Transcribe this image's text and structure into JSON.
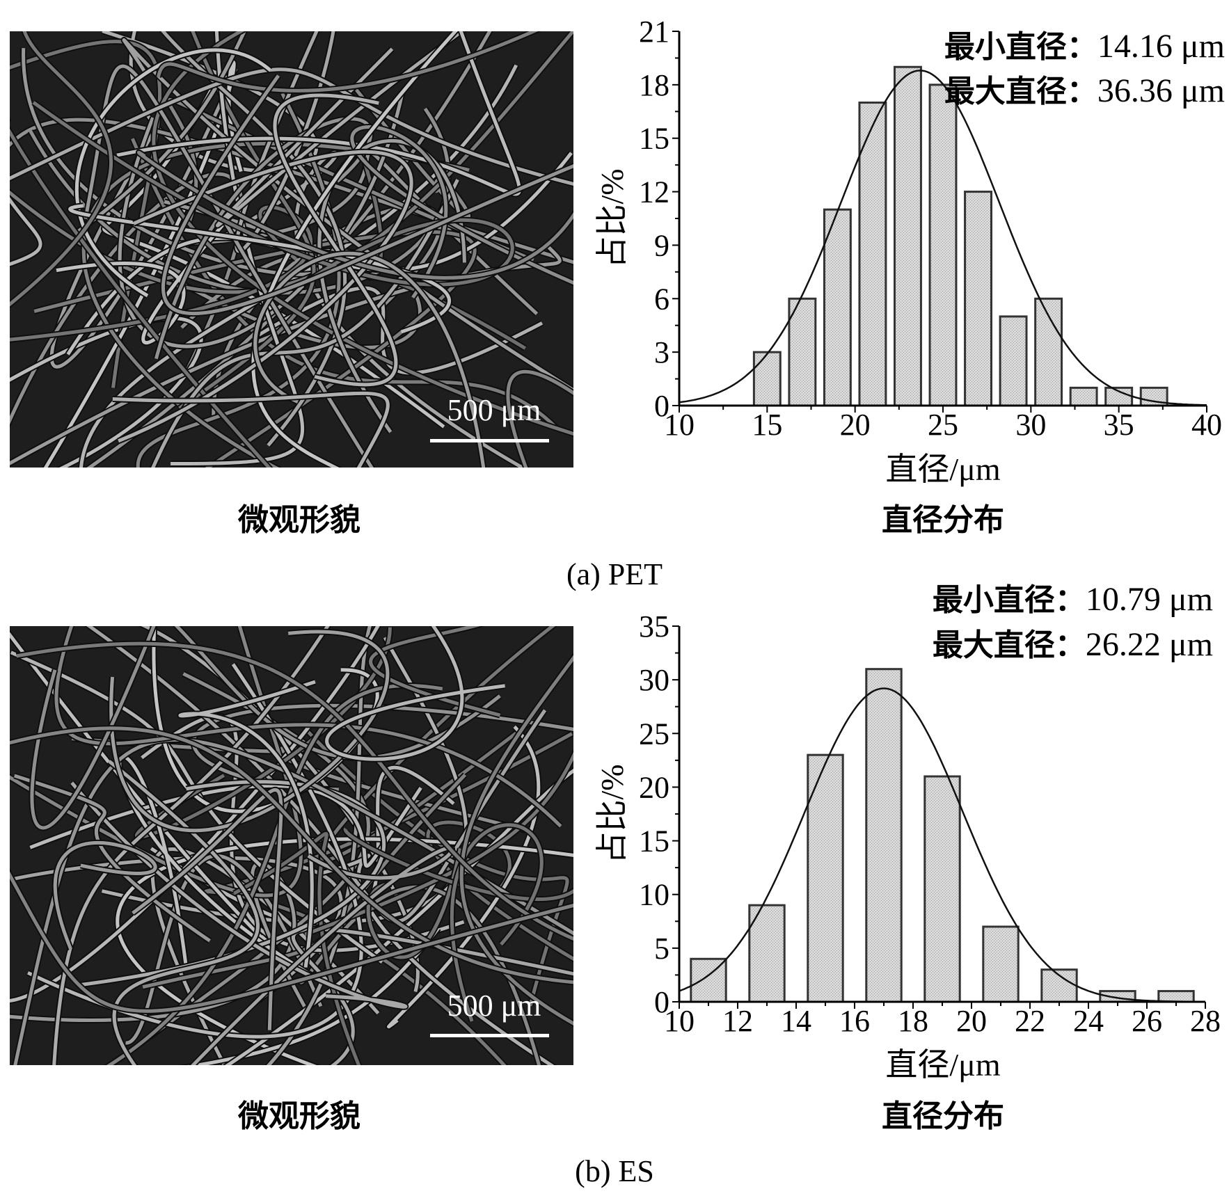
{
  "panels": [
    {
      "sub_caption": "(a)  PET",
      "sem": {
        "caption": "微观形貌",
        "scale_bar": "500 μm"
      },
      "chart_caption": "直径分布",
      "annotations": {
        "min_label": "最小直径：",
        "min_value": "14.16 μm",
        "max_label": "最大直径：",
        "max_value": "36.36 μm"
      }
    },
    {
      "sub_caption": "(b)  ES",
      "sem": {
        "caption": "微观形貌",
        "scale_bar": "500 μm"
      },
      "chart_caption": "直径分布",
      "annotations": {
        "min_label": "最小直径：",
        "min_value": "10.79 μm",
        "max_label": "最大直径：",
        "max_value": "26.22 μm"
      }
    }
  ],
  "colors": {
    "bar_fill": "#d4d4d4",
    "bar_stroke": "#333333",
    "sem_bg": "#1e1e1e",
    "fiber": "#9a9a9a"
  },
  "chart_data": [
    {
      "type": "bar",
      "title": "直径分布",
      "xlabel": "直径/μm",
      "ylabel": "占比/%",
      "xlim": [
        10,
        40
      ],
      "ylim": [
        0,
        21
      ],
      "xticks": [
        10,
        15,
        20,
        25,
        30,
        35,
        40
      ],
      "yticks": [
        0,
        3,
        6,
        9,
        12,
        15,
        18,
        21
      ],
      "bar_width": 1.5,
      "x": [
        15,
        17,
        19,
        21,
        23,
        25,
        27,
        29,
        31,
        33,
        35,
        37
      ],
      "values": [
        3,
        6,
        11,
        17,
        19,
        18,
        12,
        5,
        6,
        1,
        1,
        1
      ],
      "fit": {
        "type": "gaussian",
        "mean": 23.7,
        "sigma": 4.5,
        "peak": 18.8
      }
    },
    {
      "type": "bar",
      "title": "直径分布",
      "xlabel": "直径/μm",
      "ylabel": "占比/%",
      "xlim": [
        10,
        28
      ],
      "ylim": [
        0,
        35
      ],
      "xticks": [
        10,
        12,
        14,
        16,
        18,
        20,
        22,
        24,
        26,
        28
      ],
      "yticks": [
        0,
        5,
        10,
        15,
        20,
        25,
        30,
        35
      ],
      "bar_width": 1.2,
      "x": [
        11,
        13,
        15,
        17,
        19,
        21,
        23,
        25,
        27
      ],
      "values": [
        4,
        9,
        23,
        31,
        21,
        7,
        3,
        1,
        1
      ],
      "fit": {
        "type": "gaussian",
        "mean": 17.0,
        "sigma": 2.7,
        "peak": 29.2
      }
    }
  ]
}
